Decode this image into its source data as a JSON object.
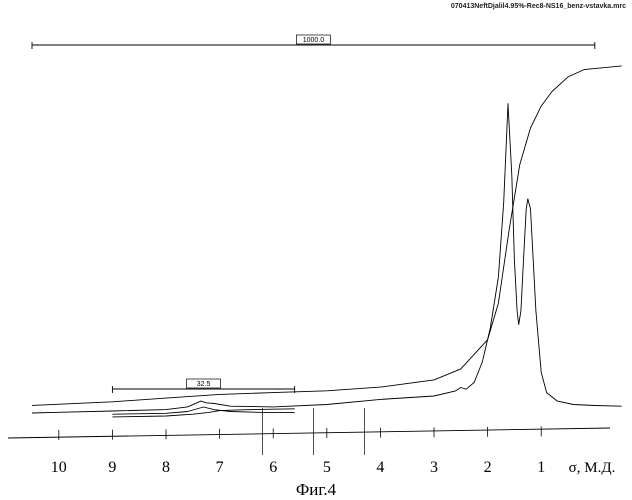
{
  "file_name": "070413NeftDjalil4.95%-Rec8-NS16_benz-vstavka.mrc",
  "figure_caption": "Фиг.4",
  "chart_data": {
    "type": "line",
    "title": "",
    "xlabel": "σ, М.Д.",
    "ylabel": "",
    "xlim": [
      10.5,
      -0.6
    ],
    "x_reversed": true,
    "x_ticks": [
      10,
      9,
      8,
      7,
      6,
      5,
      4,
      3,
      2,
      1
    ],
    "ylim": [
      0,
      1.0
    ],
    "grid": false,
    "integrals": [
      {
        "value": "1000.0",
        "from": 10.5,
        "to": 0.0
      },
      {
        "value": "32.5",
        "from": 9.0,
        "to": 5.6
      }
    ],
    "series": [
      {
        "role": "spectrum",
        "x": [
          10.5,
          10.0,
          9.0,
          8.0,
          7.6,
          7.35,
          7.25,
          7.1,
          6.8,
          6.0,
          5.0,
          4.0,
          3.0,
          2.6,
          2.5,
          2.4,
          2.25,
          2.1,
          1.95,
          1.8,
          1.7,
          1.62,
          1.55,
          1.5,
          1.45,
          1.42,
          1.38,
          1.33,
          1.28,
          1.25,
          1.2,
          1.15,
          1.1,
          1.0,
          0.9,
          0.7,
          0.4,
          0.0,
          -0.5
        ],
        "y": [
          0.0,
          0.002,
          0.006,
          0.01,
          0.018,
          0.035,
          0.03,
          0.028,
          0.02,
          0.018,
          0.025,
          0.04,
          0.05,
          0.065,
          0.075,
          0.07,
          0.09,
          0.15,
          0.25,
          0.4,
          0.62,
          0.91,
          0.7,
          0.45,
          0.3,
          0.26,
          0.3,
          0.45,
          0.6,
          0.63,
          0.6,
          0.45,
          0.3,
          0.12,
          0.06,
          0.035,
          0.025,
          0.022,
          0.02
        ]
      },
      {
        "role": "integral",
        "x": [
          10.5,
          9.0,
          8.0,
          7.0,
          6.0,
          5.0,
          4.0,
          3.0,
          2.5,
          2.0,
          1.8,
          1.6,
          1.4,
          1.2,
          1.0,
          0.8,
          0.5,
          0.2,
          -0.5
        ],
        "y": [
          0.04,
          0.05,
          0.06,
          0.07,
          0.075,
          0.08,
          0.09,
          0.11,
          0.14,
          0.22,
          0.32,
          0.52,
          0.7,
          0.8,
          0.86,
          0.9,
          0.94,
          0.96,
          0.97
        ]
      },
      {
        "role": "zoom-inset-spectrum",
        "x": [
          9.0,
          8.0,
          7.6,
          7.3,
          7.1,
          6.8,
          6.2,
          5.6
        ],
        "y": [
          0.06,
          0.065,
          0.075,
          0.1,
          0.085,
          0.075,
          0.07,
          0.07
        ]
      },
      {
        "role": "zoom-inset-integral",
        "x": [
          9.0,
          8.0,
          7.5,
          7.2,
          7.0,
          6.5,
          6.0,
          5.6
        ],
        "y": [
          0.045,
          0.05,
          0.06,
          0.07,
          0.08,
          0.085,
          0.088,
          0.09
        ]
      }
    ]
  }
}
